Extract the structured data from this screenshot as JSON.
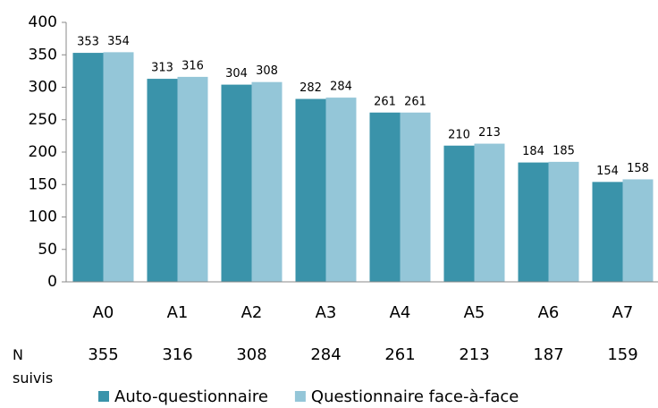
{
  "chart_data": {
    "type": "bar",
    "categories": [
      "A0",
      "A1",
      "A2",
      "A3",
      "A4",
      "A5",
      "A6",
      "A7"
    ],
    "series": [
      {
        "name": "Auto-questionnaire",
        "color": "#3a93aa",
        "values": [
          353,
          313,
          304,
          282,
          261,
          210,
          184,
          154
        ]
      },
      {
        "name": "Questionnaire face-à-face",
        "color": "#94c6d8",
        "values": [
          354,
          316,
          308,
          284,
          261,
          213,
          185,
          158
        ]
      }
    ],
    "ylim": [
      0,
      400
    ],
    "yticks": [
      0,
      50,
      100,
      150,
      200,
      250,
      300,
      350,
      400
    ],
    "grid": false,
    "legend": "bottom",
    "n_row": {
      "label": "N suivis",
      "values": [
        355,
        316,
        308,
        284,
        261,
        213,
        187,
        159
      ]
    }
  }
}
